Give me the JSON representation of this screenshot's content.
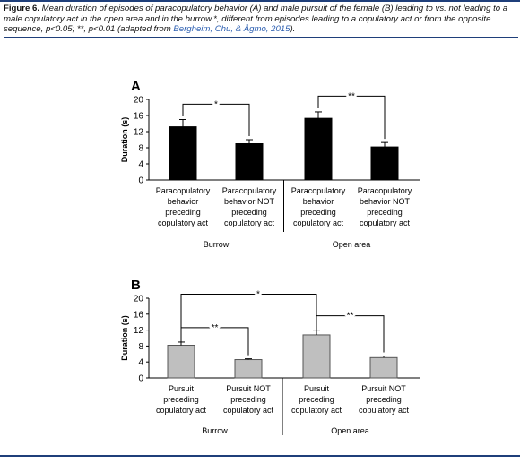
{
  "caption": {
    "label": "Figure 6.",
    "text": " Mean duration of episodes of paracopulatory behavior (A) and male pursuit of the female (B) leading to vs. not leading to a male copulatory act in the open area and in the burrow.*, different from episodes leading to a copulatory act or from the opposite sequence, p<0.05; **, p<0.01 (adapted from ",
    "reference": "Bergheim, Chu, & Ågmo, 2015",
    "end": ")."
  },
  "colors": {
    "panel_a_bar": "#000000",
    "panel_b_bar": "#bfbfbf",
    "rule": "#1f3f7a"
  },
  "chart_data": [
    {
      "type": "bar",
      "panel_label": "A",
      "ylabel": "Duration (s)",
      "ylim": [
        0,
        20
      ],
      "yticks": [
        0,
        4,
        8,
        12,
        16,
        20
      ],
      "categories": [
        [
          "Paracopulatory",
          "behavior",
          "preceding",
          "copulatory act"
        ],
        [
          "Paracopulatory",
          "behavior NOT",
          "preceding",
          "copulatory act"
        ],
        [
          "Paracopulatory",
          "behavior",
          "preceding",
          "copulatory act"
        ],
        [
          "Paracopulatory",
          "behavior NOT",
          "preceding",
          "copulatory act"
        ]
      ],
      "values": [
        13.2,
        9.0,
        15.3,
        8.2
      ],
      "errors": [
        1.8,
        1.0,
        1.6,
        1.1
      ],
      "groups": [
        "Burrow",
        "Open area"
      ],
      "significance": [
        {
          "from": 0,
          "to": 1,
          "label": "*"
        },
        {
          "from": 2,
          "to": 3,
          "label": "**"
        }
      ]
    },
    {
      "type": "bar",
      "panel_label": "B",
      "ylabel": "Duration (s)",
      "ylim": [
        0,
        20
      ],
      "yticks": [
        0,
        4,
        8,
        12,
        16,
        20
      ],
      "categories": [
        [
          "Pursuit",
          "preceding",
          "copulatory act"
        ],
        [
          "Pursuit NOT",
          "preceding",
          "copulatory act"
        ],
        [
          "Pursuit",
          "preceding",
          "copulatory act"
        ],
        [
          "Pursuit NOT",
          "preceding",
          "copulatory act"
        ]
      ],
      "values": [
        8.2,
        4.6,
        10.8,
        5.1
      ],
      "errors": [
        0.8,
        0.2,
        1.2,
        0.4
      ],
      "groups": [
        "Burrow",
        "Open area"
      ],
      "significance": [
        {
          "from": 0,
          "to": 1,
          "label": "**"
        },
        {
          "from": 2,
          "to": 3,
          "label": "**"
        },
        {
          "from": 0,
          "to": 2,
          "label": "*"
        }
      ]
    }
  ]
}
